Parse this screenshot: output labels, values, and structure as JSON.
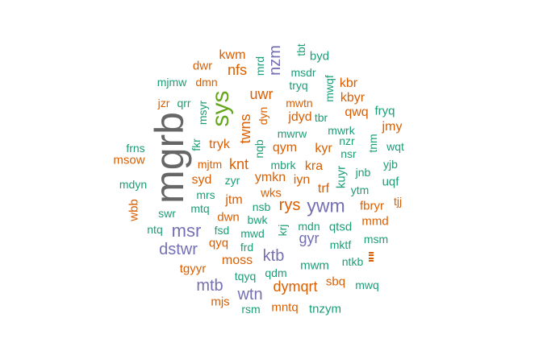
{
  "colors": {
    "teal": "#1b9e77",
    "orange": "#d95f02",
    "purple": "#7570b3",
    "green": "#66a61e",
    "gray": "#666666"
  },
  "words": [
    {
      "text": "mgrb",
      "color": "gray"
    },
    {
      "text": "sys",
      "color": "green"
    },
    {
      "text": "ywm",
      "color": "purple"
    },
    {
      "text": "msr",
      "color": "purple"
    },
    {
      "text": "dstwr",
      "color": "purple"
    },
    {
      "text": "mtb",
      "color": "purple"
    },
    {
      "text": "wtn",
      "color": "purple"
    },
    {
      "text": "ktb",
      "color": "purple"
    },
    {
      "text": "gyr",
      "color": "purple"
    },
    {
      "text": "nzm",
      "color": "purple"
    },
    {
      "text": "rys",
      "color": "orange"
    },
    {
      "text": "twns",
      "color": "orange"
    },
    {
      "text": "knt",
      "color": "orange"
    },
    {
      "text": "nfs",
      "color": "orange"
    },
    {
      "text": "uwr",
      "color": "orange"
    },
    {
      "text": "dymqrt",
      "color": "orange"
    },
    {
      "text": "moss",
      "color": "orange"
    },
    {
      "text": "jdyd",
      "color": "orange"
    },
    {
      "text": "kwm",
      "color": "orange"
    },
    {
      "text": "dwr",
      "color": "orange"
    },
    {
      "text": "mjmw",
      "color": "teal"
    },
    {
      "text": "dmn",
      "color": "orange"
    },
    {
      "text": "mrd",
      "color": "teal"
    },
    {
      "text": "tbt",
      "color": "teal"
    },
    {
      "text": "byd",
      "color": "teal"
    },
    {
      "text": "msdr",
      "color": "teal"
    },
    {
      "text": "tryq",
      "color": "teal"
    },
    {
      "text": "mwqf",
      "color": "teal"
    },
    {
      "text": "kbr",
      "color": "orange"
    },
    {
      "text": "kbyr",
      "color": "orange"
    },
    {
      "text": "jzr",
      "color": "orange"
    },
    {
      "text": "qrr",
      "color": "teal"
    },
    {
      "text": "msyr",
      "color": "teal"
    },
    {
      "text": "mwtn",
      "color": "orange"
    },
    {
      "text": "qwq",
      "color": "orange"
    },
    {
      "text": "fryq",
      "color": "teal"
    },
    {
      "text": "dyn",
      "color": "orange"
    },
    {
      "text": "tbr",
      "color": "teal"
    },
    {
      "text": "mwrw",
      "color": "teal"
    },
    {
      "text": "mwrk",
      "color": "teal"
    },
    {
      "text": "jmy",
      "color": "orange"
    },
    {
      "text": "frns",
      "color": "teal"
    },
    {
      "text": "fkr",
      "color": "teal"
    },
    {
      "text": "tryk",
      "color": "orange"
    },
    {
      "text": "nqb",
      "color": "teal"
    },
    {
      "text": "qym",
      "color": "orange"
    },
    {
      "text": "kyr",
      "color": "orange"
    },
    {
      "text": "nzr",
      "color": "teal"
    },
    {
      "text": "nsr",
      "color": "teal"
    },
    {
      "text": "tnm",
      "color": "teal"
    },
    {
      "text": "wqt",
      "color": "teal"
    },
    {
      "text": "msow",
      "color": "orange"
    },
    {
      "text": "mjtm",
      "color": "orange"
    },
    {
      "text": "mbrk",
      "color": "teal"
    },
    {
      "text": "kra",
      "color": "orange"
    },
    {
      "text": "yjb",
      "color": "teal"
    },
    {
      "text": "mdyn",
      "color": "teal"
    },
    {
      "text": "syd",
      "color": "orange"
    },
    {
      "text": "zyr",
      "color": "teal"
    },
    {
      "text": "ymkn",
      "color": "orange"
    },
    {
      "text": "iyn",
      "color": "orange"
    },
    {
      "text": "kuyr",
      "color": "teal"
    },
    {
      "text": "jnb",
      "color": "teal"
    },
    {
      "text": "uqf",
      "color": "teal"
    },
    {
      "text": "mrs",
      "color": "teal"
    },
    {
      "text": "wks",
      "color": "orange"
    },
    {
      "text": "trf",
      "color": "orange"
    },
    {
      "text": "ytm",
      "color": "teal"
    },
    {
      "text": "wbb",
      "color": "orange"
    },
    {
      "text": "jtm",
      "color": "orange"
    },
    {
      "text": "nsb",
      "color": "teal"
    },
    {
      "text": "fbryr",
      "color": "orange"
    },
    {
      "text": "tjj",
      "color": "orange"
    },
    {
      "text": "mtq",
      "color": "teal"
    },
    {
      "text": "swr",
      "color": "teal"
    },
    {
      "text": "dwn",
      "color": "orange"
    },
    {
      "text": "bwk",
      "color": "teal"
    },
    {
      "text": "mdn",
      "color": "teal"
    },
    {
      "text": "qtsd",
      "color": "teal"
    },
    {
      "text": "mmd",
      "color": "orange"
    },
    {
      "text": "ntq",
      "color": "teal"
    },
    {
      "text": "fsd",
      "color": "teal"
    },
    {
      "text": "mwd",
      "color": "teal"
    },
    {
      "text": "krj",
      "color": "teal"
    },
    {
      "text": "msm",
      "color": "teal"
    },
    {
      "text": "qyq",
      "color": "orange"
    },
    {
      "text": "frd",
      "color": "teal"
    },
    {
      "text": "mktf",
      "color": "teal"
    },
    {
      "text": "tgyyr",
      "color": "orange"
    },
    {
      "text": "mwm",
      "color": "teal"
    },
    {
      "text": "ntkb",
      "color": "teal"
    },
    {
      "text": "tqyq",
      "color": "teal"
    },
    {
      "text": "qdm",
      "color": "teal"
    },
    {
      "text": "sbq",
      "color": "orange"
    },
    {
      "text": "mwq",
      "color": "teal"
    },
    {
      "text": "mjs",
      "color": "orange"
    },
    {
      "text": "rsm",
      "color": "teal"
    },
    {
      "text": "mntq",
      "color": "orange"
    },
    {
      "text": "tnzym",
      "color": "teal"
    }
  ]
}
